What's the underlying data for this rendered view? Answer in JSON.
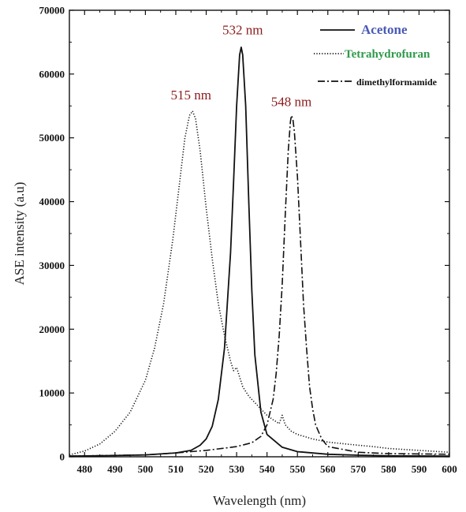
{
  "chart_data": {
    "type": "line",
    "xlabel": "Wavelength (nm)",
    "ylabel": "ASE intensity (a.u)",
    "xlim": [
      475,
      600
    ],
    "ylim": [
      0,
      70000
    ],
    "x_ticks": [
      480,
      490,
      500,
      510,
      520,
      530,
      540,
      550,
      560,
      570,
      580,
      590,
      600
    ],
    "y_ticks": [
      0,
      10000,
      20000,
      30000,
      40000,
      50000,
      60000,
      70000
    ],
    "grid": false,
    "legend_position": "top-right",
    "series": [
      {
        "name": "Acetone",
        "style": "solid",
        "label_color": "#4a5bb5",
        "points": [
          [
            475,
            100
          ],
          [
            490,
            200
          ],
          [
            500,
            300
          ],
          [
            510,
            600
          ],
          [
            515,
            1000
          ],
          [
            518,
            1800
          ],
          [
            520,
            2800
          ],
          [
            522,
            4800
          ],
          [
            524,
            9000
          ],
          [
            526,
            17000
          ],
          [
            528,
            32000
          ],
          [
            529,
            43000
          ],
          [
            530,
            55000
          ],
          [
            531,
            63000
          ],
          [
            531.5,
            64200
          ],
          [
            532,
            63000
          ],
          [
            533,
            55000
          ],
          [
            534,
            40000
          ],
          [
            535,
            26000
          ],
          [
            536,
            16000
          ],
          [
            538,
            7000
          ],
          [
            540,
            3500
          ],
          [
            545,
            1500
          ],
          [
            550,
            800
          ],
          [
            560,
            400
          ],
          [
            570,
            250
          ],
          [
            580,
            150
          ],
          [
            600,
            100
          ]
        ]
      },
      {
        "name": "Tetrahydrofuran",
        "style": "dotted",
        "label_color": "#2e9a4a",
        "points": [
          [
            475,
            300
          ],
          [
            480,
            900
          ],
          [
            485,
            2000
          ],
          [
            490,
            4000
          ],
          [
            495,
            7000
          ],
          [
            500,
            12000
          ],
          [
            503,
            17000
          ],
          [
            506,
            24000
          ],
          [
            509,
            34000
          ],
          [
            511,
            42000
          ],
          [
            513,
            50000
          ],
          [
            514.5,
            53500
          ],
          [
            515.5,
            54200
          ],
          [
            516.5,
            53000
          ],
          [
            518,
            48000
          ],
          [
            520,
            39000
          ],
          [
            522,
            31000
          ],
          [
            524,
            24000
          ],
          [
            526,
            19000
          ],
          [
            528,
            15000
          ],
          [
            529,
            13500
          ],
          [
            530,
            14000
          ],
          [
            531,
            12500
          ],
          [
            532,
            11000
          ],
          [
            534,
            9500
          ],
          [
            536,
            8500
          ],
          [
            538,
            7500
          ],
          [
            540,
            6500
          ],
          [
            542,
            5800
          ],
          [
            544,
            5200
          ],
          [
            545,
            6500
          ],
          [
            546,
            5000
          ],
          [
            548,
            4000
          ],
          [
            550,
            3500
          ],
          [
            555,
            2800
          ],
          [
            560,
            2300
          ],
          [
            570,
            1800
          ],
          [
            575,
            1600
          ],
          [
            580,
            1300
          ],
          [
            590,
            1000
          ],
          [
            600,
            700
          ]
        ]
      },
      {
        "name": "dimethylformamide",
        "style": "dashdot",
        "label_color": "#111111",
        "points": [
          [
            475,
            100
          ],
          [
            500,
            300
          ],
          [
            510,
            600
          ],
          [
            520,
            1000
          ],
          [
            530,
            1600
          ],
          [
            535,
            2200
          ],
          [
            538,
            3200
          ],
          [
            540,
            5000
          ],
          [
            542,
            9000
          ],
          [
            543,
            13000
          ],
          [
            544,
            19000
          ],
          [
            545,
            27000
          ],
          [
            546,
            38000
          ],
          [
            547,
            48000
          ],
          [
            547.7,
            52500
          ],
          [
            548,
            53500
          ],
          [
            548.5,
            53000
          ],
          [
            549,
            51000
          ],
          [
            550,
            44000
          ],
          [
            551,
            34000
          ],
          [
            552,
            24000
          ],
          [
            553,
            17000
          ],
          [
            554,
            11000
          ],
          [
            555,
            7500
          ],
          [
            556,
            5000
          ],
          [
            558,
            2800
          ],
          [
            560,
            1600
          ],
          [
            570,
            700
          ],
          [
            580,
            500
          ],
          [
            600,
            400
          ]
        ]
      }
    ],
    "annotations": [
      {
        "text": "515 nm",
        "x": 515,
        "y": 56000
      },
      {
        "text": "532 nm",
        "x": 532,
        "y": 66200
      },
      {
        "text": "548 nm",
        "x": 548,
        "y": 55000
      }
    ]
  }
}
